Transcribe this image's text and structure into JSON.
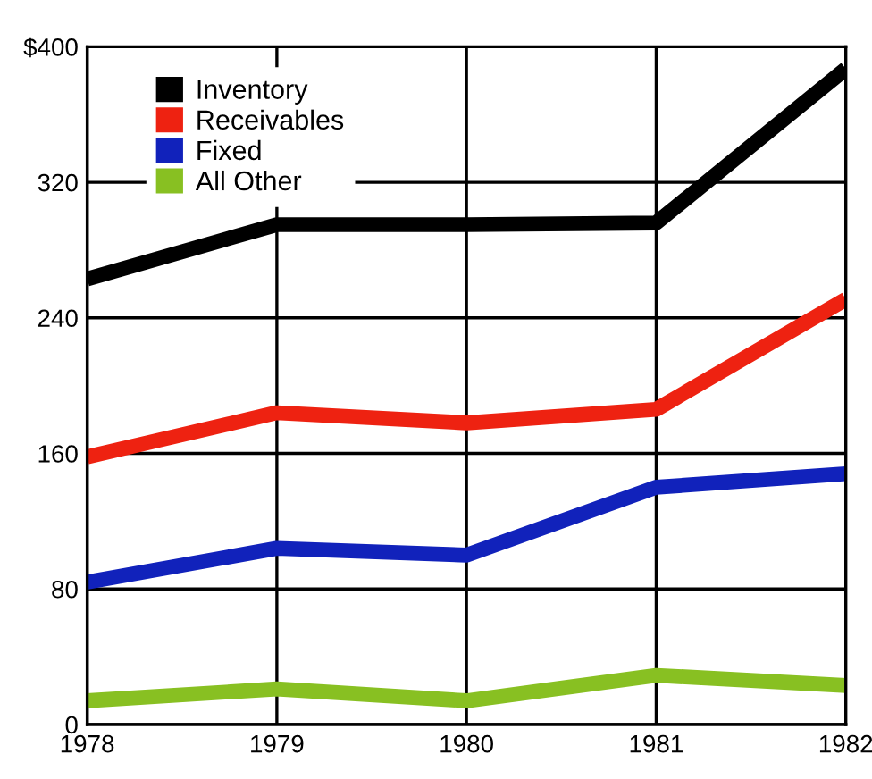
{
  "chart_data": {
    "type": "line",
    "x": [
      1978,
      1979,
      1980,
      1981,
      1982
    ],
    "series": [
      {
        "name": "Inventory",
        "color": "#000000",
        "values": [
          263,
          295,
          295,
          296,
          387
        ]
      },
      {
        "name": "Receivables",
        "color": "#ee2211",
        "values": [
          158,
          184,
          178,
          186,
          251
        ]
      },
      {
        "name": "Fixed",
        "color": "#1122bb",
        "values": [
          84,
          104,
          100,
          140,
          148
        ]
      },
      {
        "name": "All Other",
        "color": "#88c022",
        "values": [
          14,
          21,
          14,
          29,
          23
        ]
      }
    ],
    "xlim": [
      1978,
      1982
    ],
    "xticks": [
      1978,
      1979,
      1980,
      1981,
      1982
    ],
    "ylim": [
      0,
      400
    ],
    "yticks": [
      0,
      80,
      160,
      240,
      320,
      {
        "value": 400,
        "label": "$400"
      }
    ],
    "grid": true,
    "legend": "top left",
    "marker": "none",
    "line_style": "solid"
  }
}
